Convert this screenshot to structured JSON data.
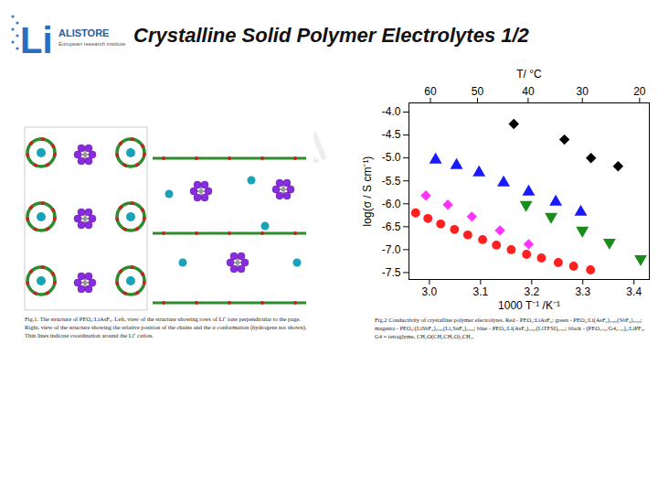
{
  "header": {
    "title": "Crystalline Solid Polymer Electrolytes 1/2",
    "logo_mark": "Li",
    "logo_name": "ALISTORE",
    "logo_subtitle": "European research institute"
  },
  "watermark": "Confidential",
  "figure1": {
    "caption": "Fig.1. The structure of PEO₆:LiAsF₆. Left, view of the structure showing rows of Li⁺ ions perpendicular to the page. Right, view of the structure showing the relative position of the chains and the α conformation (hydrogens not shown). Thin lines indicate coordination around the Li⁺ cation."
  },
  "chart_data": {
    "type": "scatter",
    "caption": "Fig.2 Conductivity of crystalline polymer electrolytes. Red - PEO₆:LiAsF₆; green - PEO₆:Li(AsF₆)₀.₉₅(SbF₆)₀.₀₅; magenta - PEO₆:(LiSbF₆)₀.₉₅(Li₂SnF₆)₀.₀₅; blue - PEO₆:Li(AsF₆)₀.₅₀(LiTFSI)₀.₅₀; black - (PEO₀.₅₅/G4₀.₄₅)₆:LiPF₆. G4 = tetraglyme, CH₃O(CH₂CH₂O)₄CH₃.",
    "xlabel": "1000 T⁻¹ /K⁻¹",
    "ylabel": "log(σ / S cm⁻¹)",
    "xlim": [
      2.96,
      3.43
    ],
    "xticks": [
      {
        "value": 3,
        "label": "3.0"
      },
      3.1,
      3.2,
      3.3,
      3.4
    ],
    "ylim": [
      -7.65,
      -3.8
    ],
    "yticks": [
      {
        "value": -4,
        "label": "-4.0"
      },
      -4.5,
      {
        "value": -5,
        "label": "-5.0"
      },
      -5.5,
      {
        "value": -6,
        "label": "-6.0"
      },
      -6.5,
      {
        "value": -7,
        "label": "-7.0"
      },
      -7.5
    ],
    "top_axis": {
      "label": "T/ °C",
      "ticks": [
        {
          "value": 3.002,
          "label": "60"
        },
        {
          "value": 3.094,
          "label": "50"
        },
        {
          "value": 3.193,
          "label": "40"
        },
        {
          "value": 3.299,
          "label": "30"
        },
        {
          "value": 3.411,
          "label": "20"
        }
      ]
    },
    "series": [
      {
        "color": "#000000",
        "marker": "diamond",
        "x": [
          3.165,
          3.264,
          3.316,
          3.369
        ],
        "values": [
          -4.26,
          -4.6,
          -5.0,
          -5.18
        ]
      },
      {
        "color": "#1a1aff",
        "marker": "triangle",
        "x": [
          3.012,
          3.053,
          3.097,
          3.145,
          3.194,
          3.247,
          3.296
        ],
        "values": [
          -5.04,
          -5.16,
          -5.32,
          -5.54,
          -5.74,
          -5.96,
          -6.18
        ]
      },
      {
        "color": "#ff33ff",
        "marker": "diamond",
        "x": [
          2.993,
          3.036,
          3.083,
          3.138,
          3.194
        ],
        "values": [
          -5.82,
          -6.02,
          -6.28,
          -6.58,
          -6.88
        ]
      },
      {
        "color": "#1a8c1a",
        "marker": "triangle-down",
        "x": [
          3.189,
          3.238,
          3.299,
          3.352,
          3.413
        ],
        "values": [
          -6.02,
          -6.28,
          -6.58,
          -6.84,
          -7.2
        ]
      },
      {
        "color": "#ff2020",
        "marker": "circle",
        "x": [
          2.973,
          2.997,
          3.022,
          3.049,
          3.075,
          3.104,
          3.131,
          3.16,
          3.19,
          3.219,
          3.252,
          3.282,
          3.315
        ],
        "values": [
          -6.2,
          -6.32,
          -6.44,
          -6.56,
          -6.68,
          -6.78,
          -6.9,
          -7.0,
          -7.1,
          -7.18,
          -7.28,
          -7.36,
          -7.44
        ]
      }
    ]
  }
}
